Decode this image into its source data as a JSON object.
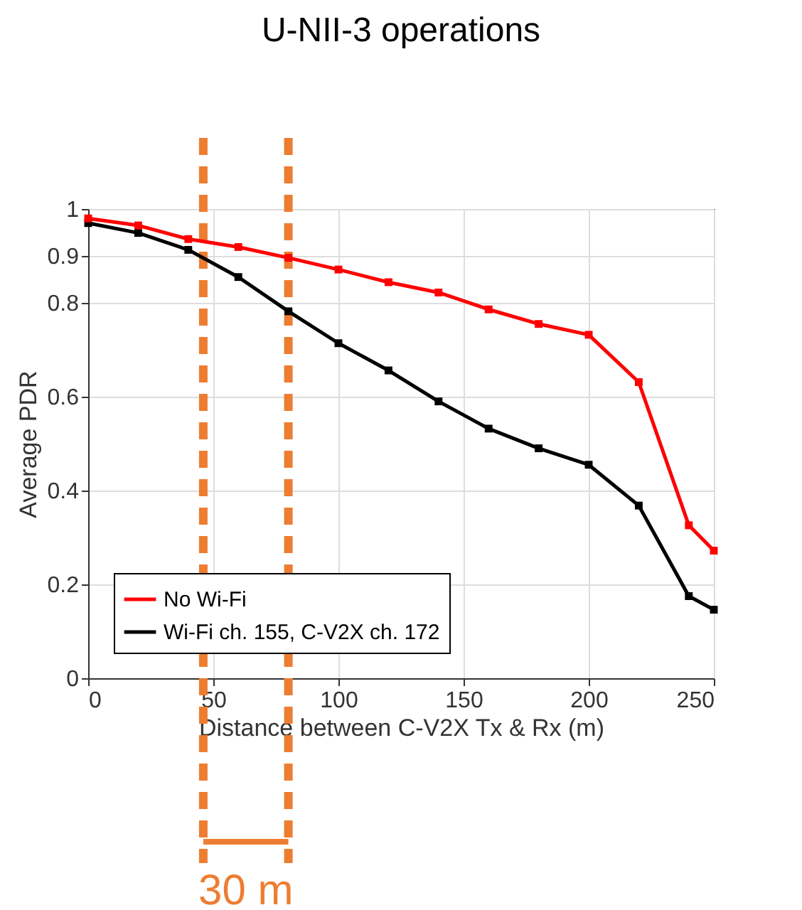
{
  "chart_data": {
    "type": "line",
    "title": "U-NII-3 operations",
    "xlabel": "Distance between C-V2X Tx & Rx (m)",
    "ylabel": "Average PDR",
    "x": [
      0,
      20,
      40,
      60,
      80,
      100,
      120,
      140,
      160,
      180,
      200,
      220,
      240,
      250
    ],
    "series": [
      {
        "name": "No Wi-Fi",
        "color": "#ff0000",
        "values": [
          0.98,
          0.965,
          0.936,
          0.919,
          0.896,
          0.871,
          0.844,
          0.822,
          0.786,
          0.755,
          0.732,
          0.631,
          0.326,
          0.272
        ]
      },
      {
        "name": "Wi-Fi ch. 155, C-V2X ch. 172",
        "color": "#000000",
        "values": [
          0.97,
          0.949,
          0.913,
          0.855,
          0.782,
          0.714,
          0.656,
          0.59,
          0.532,
          0.49,
          0.455,
          0.368,
          0.175,
          0.146
        ]
      }
    ],
    "xlim": [
      0,
      250
    ],
    "xticks": [
      0,
      50,
      100,
      150,
      200,
      250
    ],
    "ylim": [
      0,
      1
    ],
    "yticks": [
      0,
      0.2,
      0.4,
      0.6,
      0.8,
      0.9,
      1
    ],
    "ref_lines": [
      {
        "axis": "x",
        "value": 46,
        "color": "#ed7d31",
        "line_style": "dashed"
      },
      {
        "axis": "x",
        "value": 80,
        "color": "#ed7d31",
        "line_style": "dashed"
      }
    ],
    "annotations": [
      "30 m"
    ],
    "grid": true,
    "legend": "bottom left",
    "marker": "square",
    "line_style": "solid"
  }
}
